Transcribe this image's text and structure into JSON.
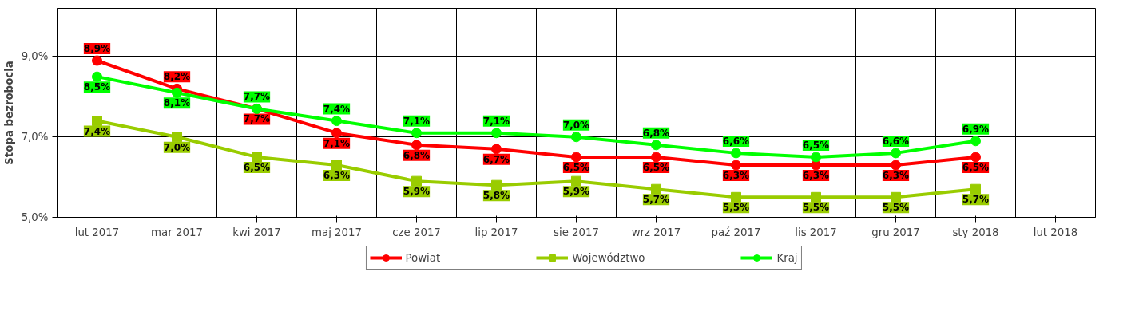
{
  "chart_data": {
    "type": "line",
    "ylabel": "Stopa bezrobocia",
    "categories": [
      "lut 2017",
      "mar 2017",
      "kwi 2017",
      "maj 2017",
      "cze 2017",
      "lip 2017",
      "sie 2017",
      "wrz 2017",
      "paź 2017",
      "lis 2017",
      "gru 2017",
      "sty 2018",
      "lut 2018"
    ],
    "series": [
      {
        "name": "Powiat",
        "color": "#ff0000",
        "marker": "circle",
        "values": [
          8.9,
          8.2,
          7.7,
          7.1,
          6.8,
          6.7,
          6.5,
          6.5,
          6.3,
          6.3,
          6.3,
          6.5,
          null
        ],
        "value_labels": [
          "8,9%",
          "8,2%",
          "7,7%",
          "7,1%",
          "6,8%",
          "6,7%",
          "6,5%",
          "6,5%",
          "6,3%",
          "6,3%",
          "6,3%",
          "6,5%",
          null
        ]
      },
      {
        "name": "Województwo",
        "color": "#99cc00",
        "marker": "square",
        "values": [
          7.4,
          7.0,
          6.5,
          6.3,
          5.9,
          5.8,
          5.9,
          5.7,
          5.5,
          5.5,
          5.5,
          5.7,
          null
        ],
        "value_labels": [
          "7,4%",
          "7,0%",
          "6,5%",
          "6,3%",
          "5,9%",
          "5,8%",
          "5,9%",
          "5,7%",
          "5,5%",
          "5,5%",
          "5,5%",
          "5,7%",
          null
        ]
      },
      {
        "name": "Kraj",
        "color": "#00ff00",
        "marker": "circle",
        "values": [
          8.5,
          8.1,
          7.7,
          7.4,
          7.1,
          7.1,
          7.0,
          6.8,
          6.6,
          6.5,
          6.6,
          6.9,
          null
        ],
        "value_labels": [
          "8,5%",
          "8,1%",
          "7,7%",
          "7,4%",
          "7,1%",
          "7,1%",
          "7,0%",
          "6,8%",
          "6,6%",
          "6,5%",
          "6,6%",
          "6,9%",
          null
        ]
      }
    ],
    "ylim": [
      5.0,
      10.2
    ],
    "yticks": [
      {
        "value": 5.0,
        "label": "5,0%"
      },
      {
        "value": 7.0,
        "label": "7,0%"
      },
      {
        "value": 9.0,
        "label": "9,0%"
      }
    ],
    "grid": true,
    "legend": "bottom",
    "line_style": "solid"
  }
}
